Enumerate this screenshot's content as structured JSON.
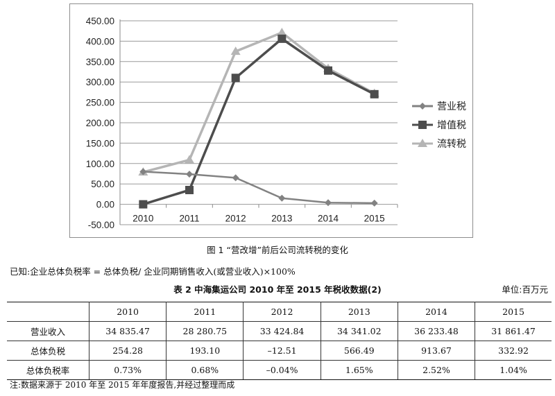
{
  "figure": {
    "caption": "图 1 “营改增”前后公司流转税的变化",
    "chart_data": {
      "type": "line",
      "categories": [
        "2010",
        "2011",
        "2012",
        "2013",
        "2014",
        "2015"
      ],
      "series": [
        {
          "name": "营业税",
          "values": [
            80,
            74,
            65,
            15,
            4,
            3
          ],
          "color": "#828282",
          "marker": "diamond"
        },
        {
          "name": "增值税",
          "values": [
            0,
            35,
            310,
            406,
            328,
            270
          ],
          "color": "#4d4d4d",
          "marker": "square"
        },
        {
          "name": "流转税",
          "values": [
            79,
            109,
            375,
            421,
            333,
            272
          ],
          "color": "#b5b5b5",
          "marker": "triangle"
        }
      ],
      "ylim": [
        -50,
        450
      ],
      "yticks": [
        "450.00",
        "400.00",
        "350.00",
        "300.00",
        "250.00",
        "200.00",
        "150.00",
        "100.00",
        "50.00",
        "0.00",
        "-50.00"
      ],
      "grid": true,
      "legend": "right"
    }
  },
  "formula": "已知:企业总体负税率 = 总体负税/ 企业同期销售收入(或营业收入)×100%",
  "table": {
    "title": "表 2 中海集运公司 2010 年至 2015 年税收数据(2)",
    "unit": "单位:百万元",
    "headers": [
      "",
      "2010",
      "2011",
      "2012",
      "2013",
      "2014",
      "2015"
    ],
    "rows": [
      {
        "label": "营业收入",
        "cells": [
          "34 835.47",
          "28 280.75",
          "33 424.84",
          "34 341.02",
          "36 233.48",
          "31 861.47"
        ]
      },
      {
        "label": "总体负税",
        "cells": [
          "254.28",
          "193.10",
          "–12.51",
          "566.49",
          "913.67",
          "332.92"
        ]
      },
      {
        "label": "总体负税率",
        "cells": [
          "0.73%",
          "0.68%",
          "–0.04%",
          "1.65%",
          "2.52%",
          "1.04%"
        ]
      }
    ]
  },
  "note": "注:数据来源于 2010 年至 2015 年年度报告,并经过整理而成"
}
